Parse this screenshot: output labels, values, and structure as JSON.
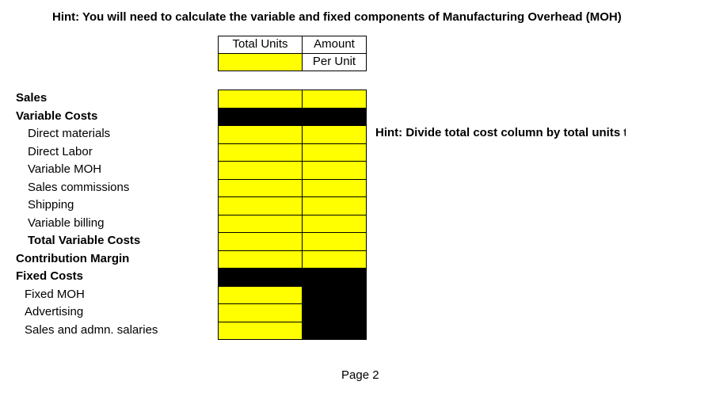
{
  "hint_top": "Hint:  You will need to calculate the variable and fixed components of Manufacturing Overhead (MOH) and",
  "columns": {
    "total_units": "Total Units",
    "amount": "Amount",
    "per_unit": "Per Unit"
  },
  "rows": [
    "Sales",
    "Variable Costs",
    "Direct materials",
    "Direct Labor",
    "Variable MOH",
    "Sales commissions",
    "Shipping",
    "Variable billing",
    "Total Variable Costs",
    "Contribution Margin",
    "Fixed Costs",
    "Fixed MOH",
    "Advertising",
    "Sales and admn. salaries"
  ],
  "hint_side": "Hint:  Divide total cost column by total units to",
  "footer": "Page 2"
}
